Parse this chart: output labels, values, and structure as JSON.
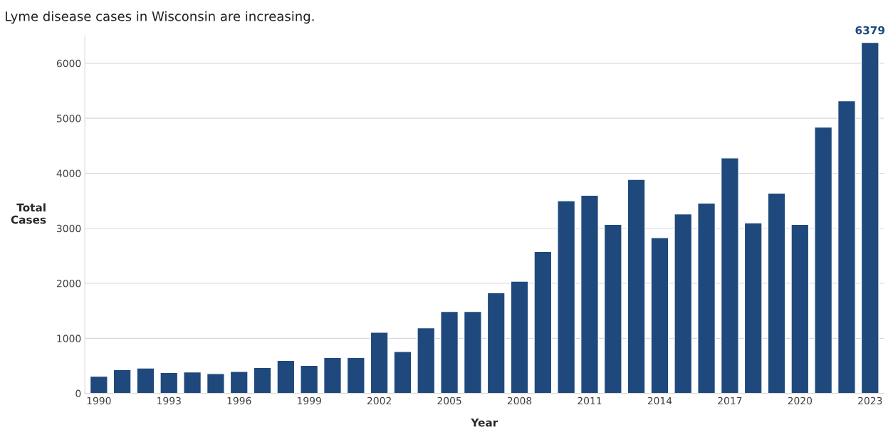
{
  "chart_data": {
    "type": "bar",
    "title": "Lyme disease cases in Wisconsin are increasing.",
    "xlabel": "Year",
    "ylabel": "Total\nCases",
    "categories": [
      "1990",
      null,
      null,
      "1993",
      null,
      null,
      "1996",
      null,
      null,
      "1999",
      null,
      null,
      "2002",
      null,
      null,
      "2005",
      null,
      null,
      "2008",
      null,
      null,
      "2011",
      null,
      null,
      "2014",
      null,
      null,
      "2017",
      null,
      null,
      "2020",
      null,
      null,
      "2023"
    ],
    "values": [
      310,
      430,
      460,
      380,
      390,
      360,
      400,
      470,
      600,
      510,
      650,
      650,
      1110,
      760,
      1190,
      1490,
      1490,
      1830,
      2040,
      2580,
      3500,
      3600,
      3070,
      3890,
      2830,
      3260,
      3460,
      4280,
      3100,
      3640,
      3070,
      4840,
      5320,
      6379
    ],
    "value_labels": [
      null,
      null,
      null,
      null,
      null,
      null,
      null,
      null,
      null,
      null,
      null,
      null,
      null,
      null,
      null,
      null,
      null,
      null,
      null,
      null,
      null,
      null,
      null,
      null,
      null,
      null,
      null,
      null,
      null,
      null,
      null,
      null,
      null,
      "6379"
    ],
    "color": "#1f497d",
    "ylim": [
      0,
      6500
    ],
    "yticks": [
      0,
      1000,
      2000,
      3000,
      4000,
      5000,
      6000
    ],
    "grid": "y"
  }
}
